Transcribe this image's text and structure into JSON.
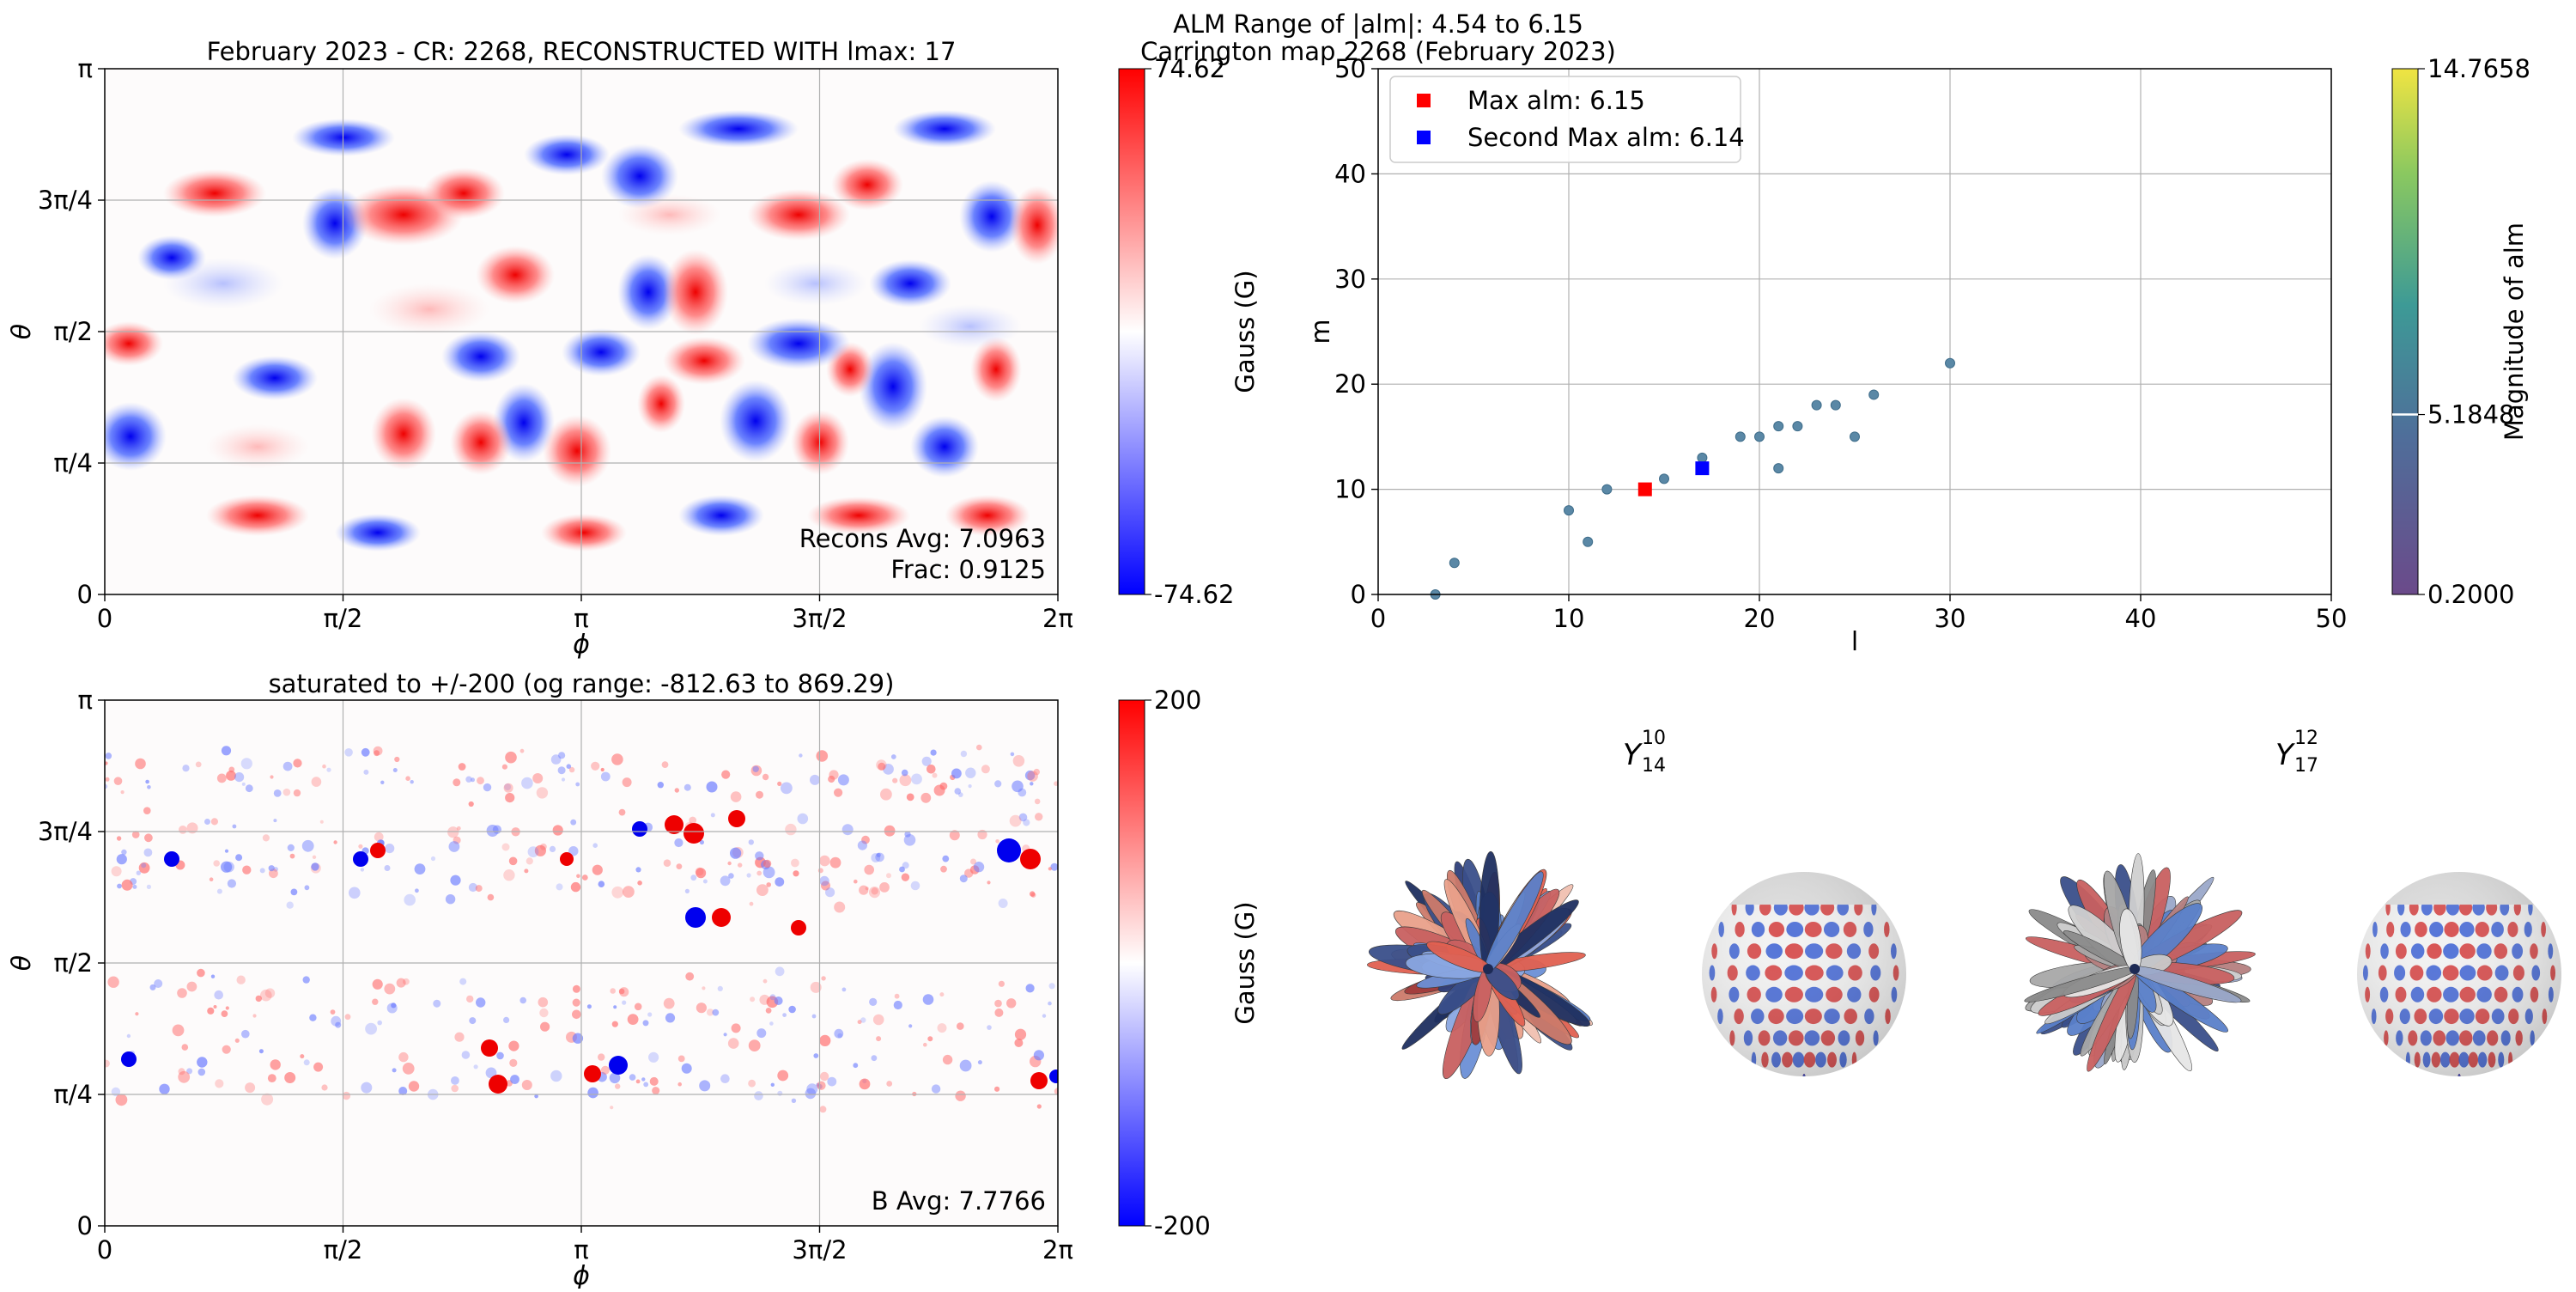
{
  "panels": {
    "recon": {
      "title": "February 2023 - CR: 2268, RECONSTRUCTED WITH lmax: 17",
      "xlabel": "ϕ",
      "ylabel": "θ",
      "xticks": [
        "0",
        "π/2",
        "π",
        "3π/2",
        "2π"
      ],
      "yticks": [
        "0",
        "π/4",
        "π/2",
        "3π/4",
        "π"
      ],
      "annotation_1": "Recons Avg: 7.0963",
      "annotation_2": "Frac: 0.9125",
      "colorbar": {
        "max": "74.62",
        "min": "-74.62",
        "label": "Gauss (G)"
      }
    },
    "orig": {
      "title": "saturated to +/-200 (og range: -812.63 to 869.29)",
      "xlabel": "ϕ",
      "ylabel": "θ",
      "xticks": [
        "0",
        "π/2",
        "π",
        "3π/2",
        "2π"
      ],
      "yticks": [
        "0",
        "π/4",
        "π/2",
        "3π/4",
        "π"
      ],
      "annotation_1": "B Avg: 7.7766",
      "colorbar": {
        "max": "200",
        "min": "-200",
        "label": "Gauss (G)"
      }
    },
    "spheres": {
      "label_left": {
        "base": "Y",
        "sup": "10",
        "sub": "14"
      },
      "label_right": {
        "base": "Y",
        "sup": "12",
        "sub": "17"
      }
    }
  },
  "colors": {
    "positive": "#ff0000",
    "negative": "#0000ff",
    "neutral": "#ffffff",
    "scatter_point": "#5a88a6",
    "max_marker": "#ff0000",
    "second_marker": "#0000ff"
  },
  "chart_data": [
    {
      "type": "scatter",
      "title": "ALM Range of |alm|: 4.54 to 6.15",
      "subtitle": "Carrington map 2268 (February 2023)",
      "xlabel": "l",
      "ylabel": "m",
      "xlim": [
        0,
        50
      ],
      "ylim": [
        0,
        50
      ],
      "xticks": [
        0,
        10,
        20,
        30,
        40,
        50
      ],
      "yticks": [
        0,
        10,
        20,
        30,
        40,
        50
      ],
      "grid": true,
      "legend_position": "top-left",
      "points": [
        {
          "x": 3,
          "y": 0
        },
        {
          "x": 4,
          "y": 3
        },
        {
          "x": 10,
          "y": 8
        },
        {
          "x": 11,
          "y": 5
        },
        {
          "x": 12,
          "y": 10
        },
        {
          "x": 15,
          "y": 11
        },
        {
          "x": 17,
          "y": 13
        },
        {
          "x": 19,
          "y": 15
        },
        {
          "x": 20,
          "y": 15
        },
        {
          "x": 21,
          "y": 16
        },
        {
          "x": 21,
          "y": 12
        },
        {
          "x": 22,
          "y": 16
        },
        {
          "x": 23,
          "y": 18
        },
        {
          "x": 24,
          "y": 18
        },
        {
          "x": 25,
          "y": 15
        },
        {
          "x": 26,
          "y": 19
        },
        {
          "x": 30,
          "y": 22
        }
      ],
      "highlights": [
        {
          "name": "Max alm: 6.15",
          "x": 14,
          "y": 10,
          "color": "#ff0000"
        },
        {
          "name": "Second Max alm: 6.14",
          "x": 17,
          "y": 12,
          "color": "#0000ff"
        }
      ],
      "colorbar": {
        "label": "Magnitude of alm",
        "min": 0.2,
        "max": 14.7658,
        "marker": 5.1848,
        "tick_labels": [
          "0.2000",
          "5.1848",
          "14.7658"
        ]
      }
    },
    {
      "type": "heatmap",
      "name": "reconstructed map",
      "x_range": [
        0,
        6.2832
      ],
      "y_range": [
        0,
        3.1416
      ],
      "value_range": [
        -74.62,
        74.62
      ]
    },
    {
      "type": "heatmap",
      "name": "saturated magnetogram",
      "x_range": [
        0,
        6.2832
      ],
      "y_range": [
        0,
        3.1416
      ],
      "value_range": [
        -200,
        200
      ]
    }
  ]
}
